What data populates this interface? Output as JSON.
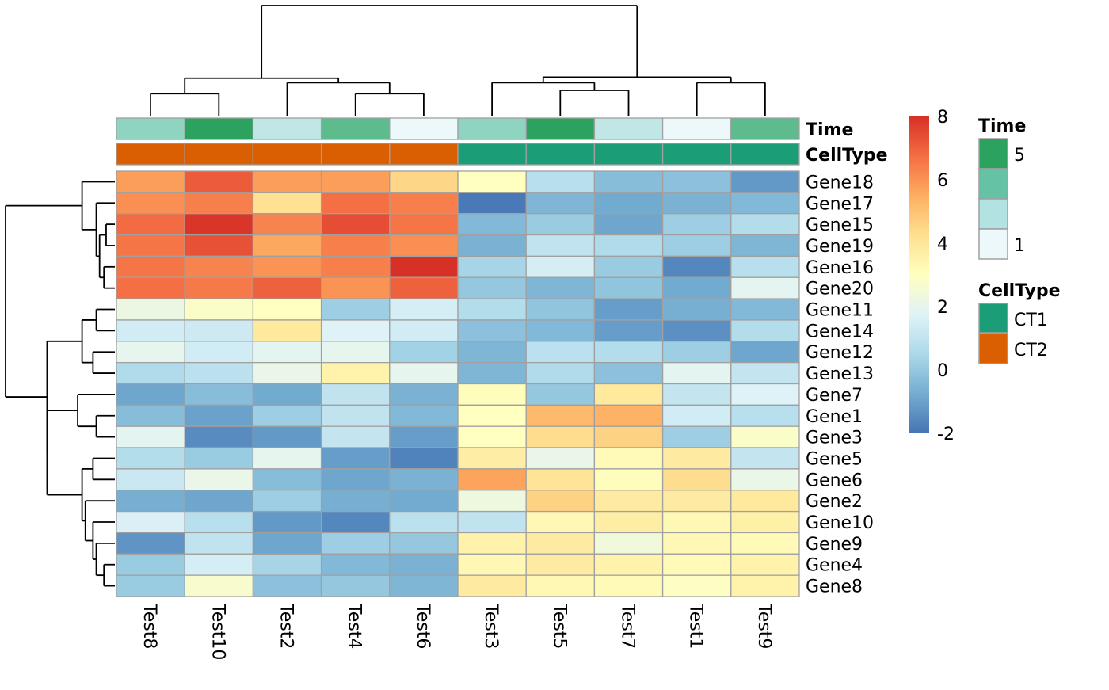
{
  "chart_data": {
    "type": "heatmap",
    "title": "",
    "columns": [
      "Test8",
      "Test10",
      "Test2",
      "Test4",
      "Test6",
      "Test3",
      "Test5",
      "Test7",
      "Test1",
      "Test9"
    ],
    "rows": [
      "Gene18",
      "Gene17",
      "Gene15",
      "Gene19",
      "Gene16",
      "Gene20",
      "Gene11",
      "Gene14",
      "Gene12",
      "Gene13",
      "Gene7",
      "Gene1",
      "Gene3",
      "Gene5",
      "Gene6",
      "Gene2",
      "Gene10",
      "Gene9",
      "Gene4",
      "Gene8"
    ],
    "values": [
      [
        5.8,
        7.1,
        5.8,
        5.8,
        4.5,
        3.0,
        0.8,
        -0.3,
        -0.2,
        -1.2
      ],
      [
        6.1,
        6.4,
        4.2,
        6.7,
        6.4,
        -1.9,
        -0.5,
        -0.8,
        -0.6,
        -0.4
      ],
      [
        6.8,
        7.9,
        6.3,
        7.4,
        6.6,
        -0.4,
        0.1,
        -0.9,
        0.2,
        0.7
      ],
      [
        6.6,
        7.3,
        5.6,
        6.4,
        6.1,
        -0.6,
        1.0,
        0.6,
        0.2,
        -0.5
      ],
      [
        6.6,
        6.3,
        6.0,
        6.4,
        8.0,
        0.4,
        1.5,
        0.1,
        -1.6,
        0.8
      ],
      [
        6.7,
        6.5,
        7.0,
        6.0,
        7.0,
        0.0,
        -0.5,
        -0.1,
        -0.8,
        1.9
      ],
      [
        2.2,
        2.8,
        3.0,
        0.2,
        1.5,
        0.7,
        -0.1,
        -1.1,
        -0.7,
        -0.4
      ],
      [
        1.4,
        1.3,
        3.9,
        1.7,
        1.4,
        -0.2,
        -0.4,
        -1.1,
        -1.4,
        0.7
      ],
      [
        2.0,
        1.4,
        1.9,
        2.0,
        0.3,
        -0.5,
        0.9,
        0.7,
        0.2,
        -0.9
      ],
      [
        0.6,
        0.9,
        2.1,
        3.5,
        2.0,
        -0.5,
        0.6,
        -0.2,
        1.9,
        1.1
      ],
      [
        -0.9,
        -0.3,
        -0.8,
        1.0,
        -0.6,
        3.1,
        0.0,
        3.9,
        1.1,
        1.7
      ],
      [
        -0.3,
        -1.0,
        0.2,
        1.0,
        -0.4,
        3.0,
        5.2,
        5.4,
        1.4,
        0.8
      ],
      [
        1.9,
        -1.5,
        -1.2,
        1.1,
        -1.1,
        3.0,
        4.3,
        4.6,
        0.2,
        2.8
      ],
      [
        0.7,
        0.1,
        2.0,
        -1.1,
        -1.7,
        3.7,
        2.1,
        3.2,
        3.8,
        1.1
      ],
      [
        1.2,
        2.1,
        -0.3,
        -0.9,
        -0.6,
        5.7,
        4.1,
        3.1,
        4.3,
        2.1
      ],
      [
        -0.7,
        -0.9,
        0.2,
        -0.7,
        -0.8,
        2.3,
        4.6,
        3.8,
        3.8,
        3.9
      ],
      [
        1.6,
        0.8,
        -1.2,
        -1.6,
        0.9,
        1.0,
        3.3,
        3.7,
        3.3,
        3.6
      ],
      [
        -1.3,
        1.0,
        -0.9,
        0.2,
        0.0,
        3.5,
        3.8,
        2.4,
        3.3,
        3.2
      ],
      [
        0.1,
        1.5,
        0.4,
        -0.4,
        -0.6,
        3.3,
        3.8,
        3.5,
        3.2,
        3.5
      ],
      [
        0.1,
        2.7,
        -0.2,
        0.0,
        -0.5,
        3.8,
        3.3,
        3.2,
        2.9,
        3.5
      ]
    ],
    "annotations": [
      {
        "name": "Time",
        "values": [
          2,
          5,
          1.5,
          3,
          1,
          2,
          5,
          1.5,
          1,
          3
        ]
      },
      {
        "name": "CellType",
        "values": [
          "CT2",
          "CT2",
          "CT2",
          "CT2",
          "CT2",
          "CT1",
          "CT1",
          "CT1",
          "CT1",
          "CT1"
        ]
      }
    ],
    "color_scale": {
      "min": -2,
      "max": 8,
      "ticks": [
        "8",
        "6",
        "4",
        "2",
        "0",
        "-2"
      ],
      "colors": [
        "#4575b4",
        "#74add1",
        "#abd9e9",
        "#e0f3f8",
        "#ffffbf",
        "#fee090",
        "#fdae61",
        "#f46d43",
        "#d73027"
      ]
    },
    "legend_time": {
      "title": "Time",
      "labels": [
        "5",
        "1"
      ],
      "colors": [
        "#2ca25f",
        "#66c2a4",
        "#b2e2e2",
        "#edf8fb"
      ]
    },
    "legend_celltype": {
      "title": "CellType",
      "labels": [
        "CT1",
        "CT2"
      ],
      "colors": [
        "#1b9e77",
        "#d95f02"
      ]
    },
    "annotation_labels": [
      "Time",
      "CellType"
    ],
    "grid_color": "#a0a0a0",
    "col_tree_heights": [
      1.0,
      0.3,
      0.2,
      0.3,
      0.2,
      0.12,
      0.08
    ],
    "row_tree_heights": [
      1.0,
      0.48,
      0.46,
      0.18,
      0.17,
      0.14,
      0.1,
      0.1,
      0.1,
      0.11,
      0.2,
      0.16,
      0.12,
      0.14,
      0.1,
      0.12,
      0.07,
      0.04,
      0.07
    ]
  }
}
